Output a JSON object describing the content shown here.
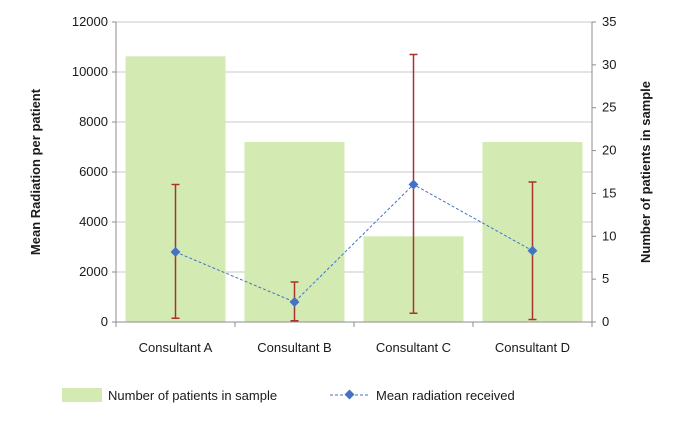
{
  "chart_data": {
    "type": "bar",
    "categories": [
      "Consultant A",
      "Consultant B",
      "Consultant C",
      "Consultant D"
    ],
    "grid": true,
    "legend_position": "bottom",
    "y_left": {
      "label": "Mean Radiation per patient",
      "range": [
        0,
        12000
      ],
      "ticks": [
        "0",
        "2000",
        "4000",
        "6000",
        "8000",
        "10000",
        "12000"
      ]
    },
    "y_right": {
      "label": "Number of patients in sample",
      "range": [
        0,
        35
      ],
      "ticks": [
        "0",
        "5",
        "10",
        "15",
        "20",
        "25",
        "30",
        "35"
      ]
    },
    "series": [
      {
        "name": "Number of patients in sample",
        "kind": "bar",
        "axis": "right",
        "color": "#d3ebb3",
        "values": [
          31,
          21,
          10,
          21
        ]
      },
      {
        "name": "Mean radiation received",
        "kind": "line",
        "axis": "left",
        "color": "#4472c4",
        "style": "dashed",
        "marker": "diamond",
        "values": [
          2800,
          800,
          5500,
          2850
        ],
        "error_low": [
          150,
          50,
          350,
          100
        ],
        "error_high": [
          5500,
          1600,
          10700,
          5600
        ],
        "error_color": "#a83232"
      }
    ]
  }
}
